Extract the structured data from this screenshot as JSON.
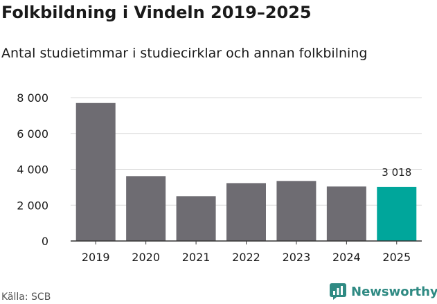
{
  "title": "Folkbildning i Vindeln 2019–2025",
  "subtitle": "Antal studietimmar i studiecirklar och annan folkbilning",
  "source": "Källa: SCB",
  "brand": {
    "name": "Newsworthy",
    "icon": "newsworthy-logo-icon"
  },
  "colors": {
    "bar": "#6e6c72",
    "highlight": "#00a69b",
    "grid": "#d9d9d9",
    "text": "#1a1a1a",
    "brand": "#2f8a83"
  },
  "chart_data": {
    "type": "bar",
    "title": "Folkbildning i Vindeln 2019–2025",
    "xlabel": "",
    "ylabel": "",
    "categories": [
      "2019",
      "2020",
      "2021",
      "2022",
      "2023",
      "2024",
      "2025"
    ],
    "values": [
      7700,
      3620,
      2500,
      3230,
      3350,
      3040,
      3018
    ],
    "highlight_index": 6,
    "data_labels": [
      {
        "index": 6,
        "text": "3 018"
      }
    ],
    "ylim": [
      0,
      8000
    ],
    "yticks": [
      0,
      2000,
      4000,
      6000,
      8000
    ],
    "ytick_labels": [
      "0",
      "2 000",
      "4 000",
      "6 000",
      "8 000"
    ],
    "grid": true
  }
}
